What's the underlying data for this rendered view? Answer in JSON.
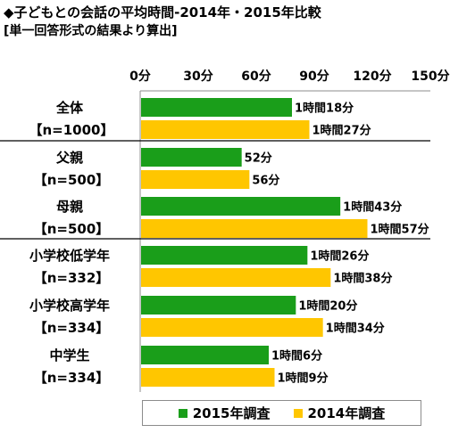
{
  "header": {
    "title": "◆子どもとの会話の平均時間-2014年・2015年比較",
    "subtitle": "[単一回答形式の結果より算出]"
  },
  "colors": {
    "series_2015": "#1a9e1a",
    "series_2014": "#ffc600"
  },
  "chart_data": {
    "type": "bar",
    "orientation": "horizontal",
    "title": "◆子どもとの会話の平均時間-2014年・2015年比較",
    "subtitle": "[単一回答形式の結果より算出]",
    "xlim": [
      0,
      150
    ],
    "x_ticks": [
      "0分",
      "30分",
      "60分",
      "90分",
      "120分",
      "150分"
    ],
    "x_tick_values": [
      0,
      30,
      60,
      90,
      120,
      150
    ],
    "categories": [
      {
        "name": "全体",
        "n": "【n=1000】"
      },
      {
        "name": "父親",
        "n": "【n=500】"
      },
      {
        "name": "母親",
        "n": "【n=500】"
      },
      {
        "name": "小学校低学年",
        "n": "【n=332】"
      },
      {
        "name": "小学校高学年",
        "n": "【n=334】"
      },
      {
        "name": "中学生",
        "n": "【n=334】"
      }
    ],
    "series": [
      {
        "name": "2015年調査",
        "values": [
          78,
          52,
          103,
          86,
          80,
          66
        ],
        "labels": [
          "1時間18分",
          "52分",
          "1時間43分",
          "1時間26分",
          "1時間20分",
          "1時間6分"
        ]
      },
      {
        "name": "2014年調査",
        "values": [
          87,
          56,
          117,
          98,
          94,
          69
        ],
        "labels": [
          "1時間27分",
          "56分",
          "1時間57分",
          "1時間38分",
          "1時間34分",
          "1時間9分"
        ]
      }
    ],
    "legend_position": "bottom",
    "grid": false
  }
}
